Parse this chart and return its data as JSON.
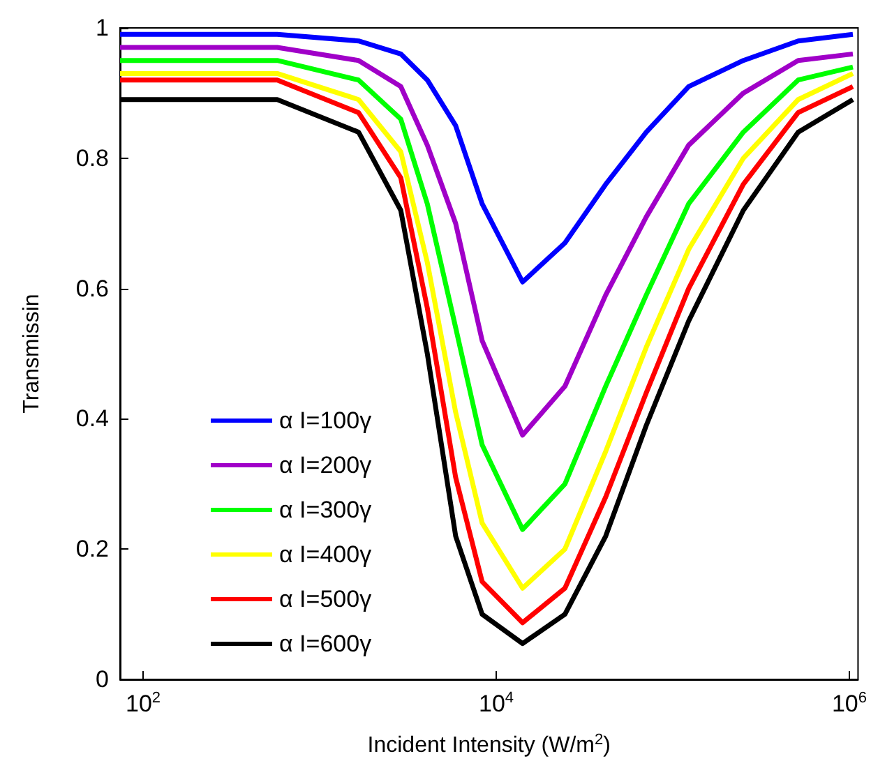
{
  "chart_data": {
    "type": "line",
    "xlabel": "Incident Intensity (W/m$^{2}$)",
    "ylabel": "Transmissin",
    "x": [
      74,
      575,
      1660,
      2880,
      4070,
      5890,
      8320,
      14100,
      24500,
      41700,
      70800,
      123000,
      251000,
      513000,
      1047000
    ],
    "series": [
      {
        "name": "α I=100γ",
        "color": "#0000ff",
        "values": [
          0.99,
          0.99,
          0.98,
          0.96,
          0.92,
          0.85,
          0.73,
          0.61,
          0.67,
          0.76,
          0.84,
          0.91,
          0.95,
          0.98,
          0.99
        ]
      },
      {
        "name": "α I=200γ",
        "color": "#a000c8",
        "values": [
          0.97,
          0.97,
          0.95,
          0.91,
          0.82,
          0.7,
          0.52,
          0.375,
          0.45,
          0.59,
          0.71,
          0.82,
          0.9,
          0.95,
          0.96
        ]
      },
      {
        "name": "α I=300γ",
        "color": "#00ff00",
        "values": [
          0.95,
          0.95,
          0.92,
          0.86,
          0.73,
          0.54,
          0.36,
          0.23,
          0.3,
          0.45,
          0.59,
          0.73,
          0.84,
          0.92,
          0.94
        ]
      },
      {
        "name": "α I=400γ",
        "color": "#ffff00",
        "values": [
          0.93,
          0.93,
          0.89,
          0.81,
          0.64,
          0.41,
          0.24,
          0.14,
          0.2,
          0.35,
          0.51,
          0.66,
          0.8,
          0.89,
          0.93
        ]
      },
      {
        "name": "α I=500γ",
        "color": "#ff0000",
        "values": [
          0.92,
          0.92,
          0.87,
          0.77,
          0.57,
          0.31,
          0.15,
          0.087,
          0.14,
          0.28,
          0.44,
          0.6,
          0.76,
          0.87,
          0.91
        ]
      },
      {
        "name": "α I=600γ",
        "color": "#000000",
        "values": [
          0.89,
          0.89,
          0.84,
          0.72,
          0.5,
          0.22,
          0.1,
          0.055,
          0.1,
          0.22,
          0.39,
          0.55,
          0.72,
          0.84,
          0.89
        ]
      }
    ],
    "log": "x",
    "xlim": [
      74,
      1120000
    ],
    "xticks": [
      {
        "value": 100,
        "label": "10$^{2}$"
      },
      {
        "value": 10000,
        "label": "10$^{4}$"
      },
      {
        "value": 1000000,
        "label": "10$^{6}$"
      }
    ],
    "ylim": [
      0,
      1
    ],
    "yticks": [
      0,
      0.2,
      0.4,
      0.6,
      0.8,
      1
    ],
    "grid": false,
    "legend": "bottom left"
  }
}
